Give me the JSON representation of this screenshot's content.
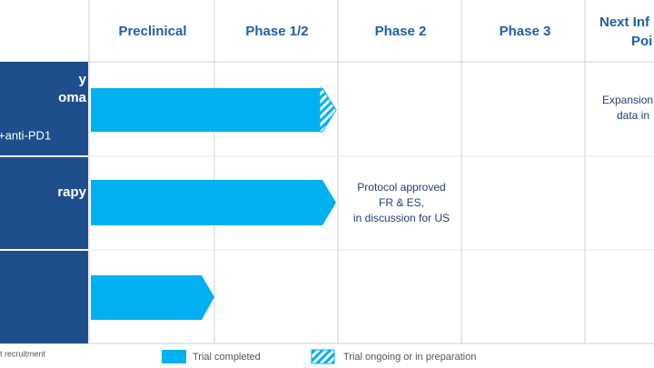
{
  "header": {
    "columns": [
      "Preclinical",
      "Phase 1/2",
      "Phase 2",
      "Phase 3"
    ],
    "next_column": [
      "Next Inf",
      "Poi"
    ]
  },
  "rows": [
    {
      "labels": [
        "y",
        "oma",
        "+anti-PD1"
      ]
    },
    {
      "labels": [
        "rapy"
      ]
    },
    {
      "labels": []
    }
  ],
  "annotations": {
    "phase2": [
      "Protocol approved",
      " FR & ES,",
      "in discussion for US"
    ],
    "next": [
      "Expansion",
      "data in"
    ]
  },
  "footnote": "t recruitment",
  "legend": [
    "Trial completed",
    "Trial ongoing or in preparation"
  ]
}
